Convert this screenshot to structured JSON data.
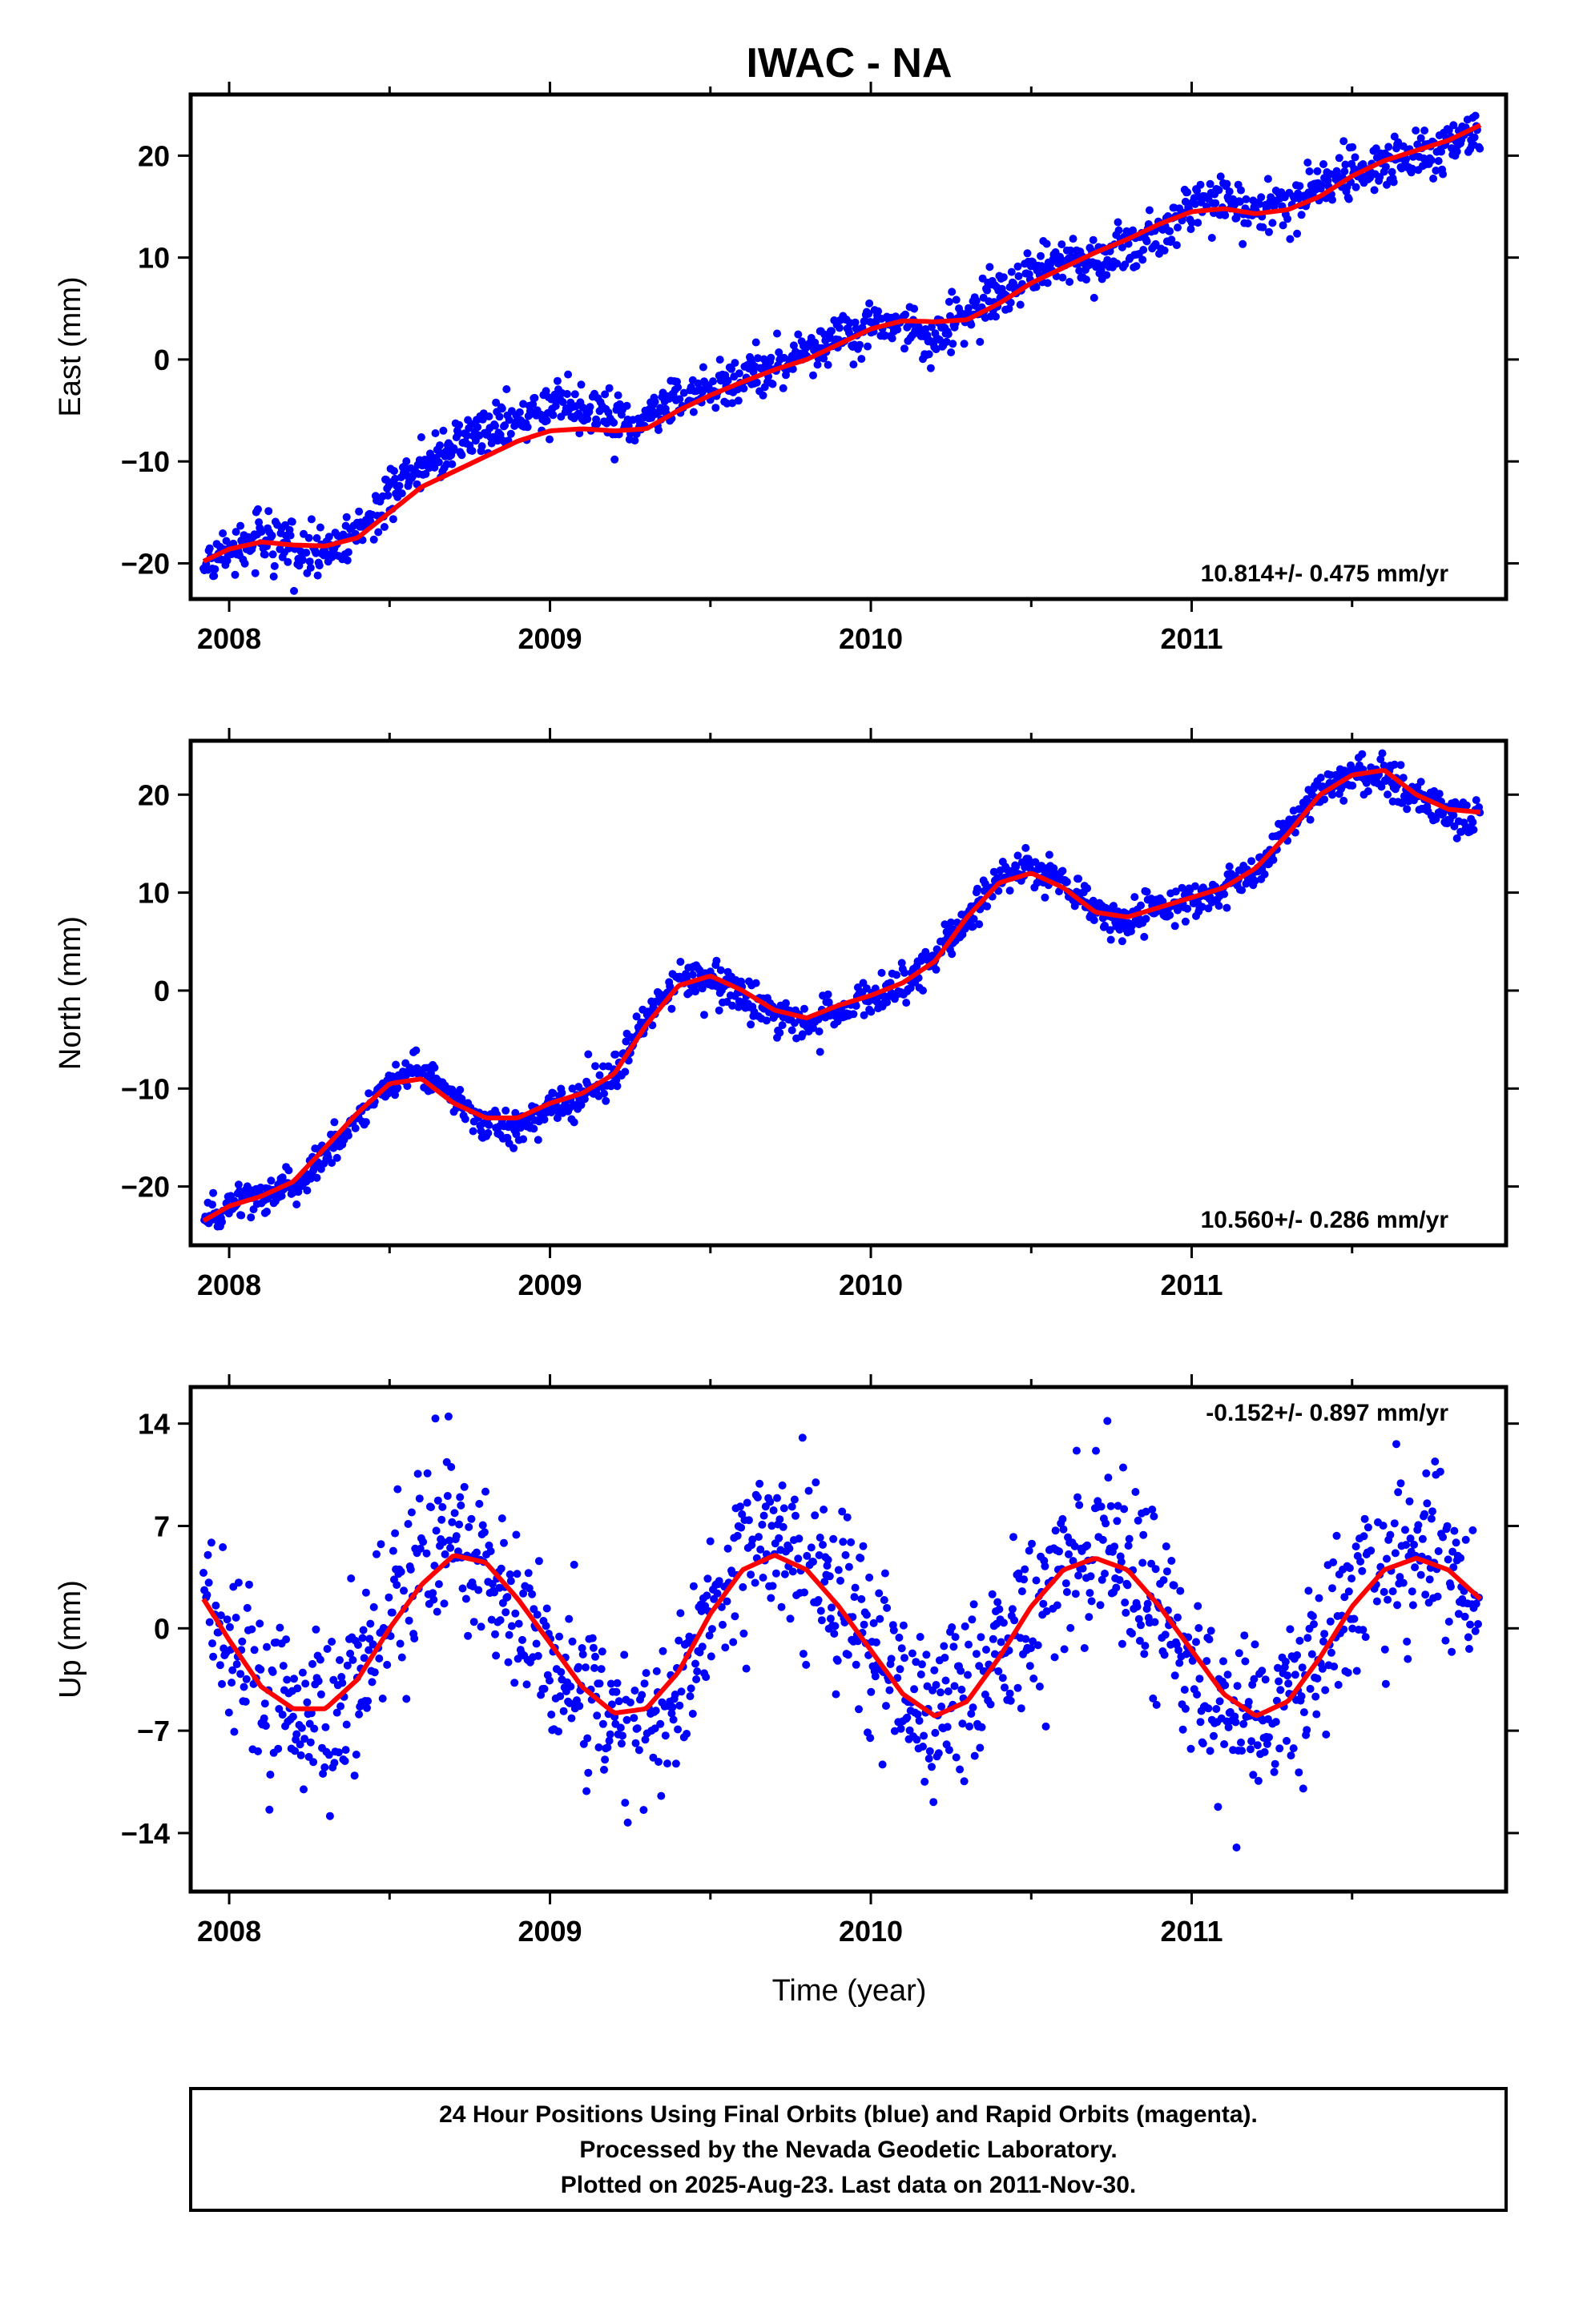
{
  "title": "IWAC - NA",
  "colors": {
    "final_orbits": "#0000ff",
    "model_fit": "#ff0000",
    "frame": "#000000"
  },
  "xlabel": "Time (year)",
  "footer": {
    "line1": "24 Hour Positions Using Final Orbits (blue) and Rapid Orbits (magenta).",
    "line2": "Processed by the Nevada Geodetic Laboratory.",
    "line3": "Plotted on 2025-Aug-23. Last data on 2011-Nov-30."
  },
  "chart_data": [
    {
      "type": "scatter",
      "component": "east",
      "ylabel": "East (mm)",
      "xlim": [
        2007.88,
        2011.98
      ],
      "ylim": [
        -23.5,
        26
      ],
      "xticks": [
        2008,
        2009,
        2010,
        2011
      ],
      "xtick_labels": [
        "2008",
        "2009",
        "2010",
        "2011"
      ],
      "yticks": [
        -20,
        -10,
        0,
        10,
        20
      ],
      "ytick_labels": [
        "−20",
        "−10",
        "0",
        "10",
        "20"
      ],
      "rate_label": "10.814+/- 0.475 mm/yr",
      "grid": false,
      "model": {
        "x": [
          2007.92,
          2008.0,
          2008.1,
          2008.2,
          2008.3,
          2008.4,
          2008.5,
          2008.6,
          2008.7,
          2008.8,
          2008.9,
          2009.0,
          2009.1,
          2009.2,
          2009.3,
          2009.4,
          2009.5,
          2009.6,
          2009.7,
          2009.8,
          2009.9,
          2010.0,
          2010.1,
          2010.2,
          2010.3,
          2010.4,
          2010.5,
          2010.6,
          2010.7,
          2010.8,
          2010.9,
          2011.0,
          2011.1,
          2011.2,
          2011.3,
          2011.4,
          2011.5,
          2011.6,
          2011.7,
          2011.8,
          2011.9
        ],
        "y": [
          -19.8,
          -18.6,
          -17.9,
          -18.2,
          -18.3,
          -17.5,
          -15.0,
          -12.5,
          -11.0,
          -9.5,
          -8.0,
          -7.0,
          -6.8,
          -7.0,
          -6.8,
          -5.0,
          -3.5,
          -2.2,
          -1.0,
          0.0,
          1.5,
          3.0,
          3.8,
          3.7,
          3.9,
          5.5,
          7.5,
          9.0,
          10.5,
          11.8,
          13.3,
          14.5,
          14.8,
          14.3,
          14.7,
          16.0,
          18.0,
          19.5,
          20.5,
          21.5,
          23.0
        ]
      },
      "observations": {
        "x": [
          2007.92,
          2008.0,
          2008.1,
          2008.2,
          2008.3,
          2008.4,
          2008.5,
          2008.6,
          2008.7,
          2008.8,
          2008.9,
          2009.0,
          2009.1,
          2009.2,
          2009.3,
          2009.4,
          2009.5,
          2009.6,
          2009.7,
          2009.8,
          2009.9,
          2010.0,
          2010.1,
          2010.2,
          2010.3,
          2010.4,
          2010.5,
          2010.6,
          2010.7,
          2010.8,
          2010.9,
          2011.0,
          2011.1,
          2011.2,
          2011.3,
          2011.4,
          2011.5,
          2011.6,
          2011.7,
          2011.8,
          2011.9
        ],
        "y": [
          -20.5,
          -19.0,
          -17.2,
          -18.5,
          -19.0,
          -16.8,
          -13.5,
          -10.5,
          -8.5,
          -7.0,
          -6.2,
          -4.5,
          -4.0,
          -6.5,
          -5.5,
          -4.0,
          -3.0,
          -1.5,
          -0.8,
          0.5,
          2.2,
          3.2,
          3.5,
          2.0,
          4.5,
          6.5,
          8.5,
          9.5,
          9.8,
          11.0,
          12.5,
          15.0,
          16.0,
          14.5,
          15.5,
          17.0,
          18.5,
          19.0,
          20.0,
          21.0,
          22.5
        ],
        "noise": 1.2
      }
    },
    {
      "type": "scatter",
      "component": "north",
      "ylabel": "North (mm)",
      "xlim": [
        2007.88,
        2011.98
      ],
      "ylim": [
        -26,
        25.5
      ],
      "xticks": [
        2008,
        2009,
        2010,
        2011
      ],
      "xtick_labels": [
        "2008",
        "2009",
        "2010",
        "2011"
      ],
      "yticks": [
        -20,
        -10,
        0,
        10,
        20
      ],
      "ytick_labels": [
        "−20",
        "−10",
        "0",
        "10",
        "20"
      ],
      "rate_label": "10.560+/- 0.286 mm/yr",
      "grid": false,
      "model": {
        "x": [
          2007.92,
          2008.0,
          2008.1,
          2008.2,
          2008.3,
          2008.4,
          2008.5,
          2008.6,
          2008.7,
          2008.8,
          2008.9,
          2009.0,
          2009.1,
          2009.2,
          2009.3,
          2009.4,
          2009.5,
          2009.6,
          2009.7,
          2009.8,
          2009.9,
          2010.0,
          2010.1,
          2010.2,
          2010.3,
          2010.4,
          2010.5,
          2010.6,
          2010.7,
          2010.8,
          2010.9,
          2011.0,
          2011.1,
          2011.2,
          2011.3,
          2011.4,
          2011.5,
          2011.6,
          2011.7,
          2011.8,
          2011.9
        ],
        "y": [
          -23.5,
          -22.0,
          -21.0,
          -19.5,
          -16.0,
          -12.5,
          -9.5,
          -9.0,
          -11.5,
          -13.0,
          -13.0,
          -11.5,
          -10.5,
          -8.5,
          -3.5,
          0.5,
          1.5,
          0.0,
          -2.0,
          -2.8,
          -1.5,
          -0.5,
          0.8,
          3.0,
          7.5,
          11.0,
          12.0,
          10.5,
          8.0,
          7.5,
          8.5,
          9.5,
          10.5,
          12.5,
          16.0,
          20.0,
          22.0,
          22.5,
          20.0,
          18.5,
          18.2
        ]
      },
      "observations": {
        "x": [
          2007.92,
          2008.0,
          2008.1,
          2008.2,
          2008.3,
          2008.4,
          2008.5,
          2008.6,
          2008.7,
          2008.8,
          2008.9,
          2009.0,
          2009.1,
          2009.2,
          2009.3,
          2009.4,
          2009.5,
          2009.6,
          2009.7,
          2009.8,
          2009.9,
          2010.0,
          2010.1,
          2010.2,
          2010.3,
          2010.4,
          2010.5,
          2010.6,
          2010.7,
          2010.8,
          2010.9,
          2011.0,
          2011.1,
          2011.2,
          2011.3,
          2011.4,
          2011.5,
          2011.6,
          2011.7,
          2011.8,
          2011.9
        ],
        "y": [
          -24.0,
          -22.0,
          -21.0,
          -19.8,
          -16.5,
          -13.0,
          -9.5,
          -8.0,
          -10.8,
          -13.5,
          -13.8,
          -12.0,
          -11.0,
          -9.0,
          -3.0,
          1.5,
          1.0,
          -0.5,
          -2.5,
          -3.5,
          -1.8,
          -0.8,
          0.5,
          3.5,
          7.0,
          11.5,
          12.5,
          11.0,
          8.0,
          7.0,
          8.5,
          9.0,
          10.5,
          12.0,
          16.5,
          20.5,
          22.0,
          22.0,
          19.5,
          18.0,
          17.5
        ],
        "noise": 0.9
      }
    },
    {
      "type": "scatter",
      "component": "up",
      "ylabel": "Up (mm)",
      "xlim": [
        2007.88,
        2011.98
      ],
      "ylim": [
        -18,
        16.5
      ],
      "xticks": [
        2008,
        2009,
        2010,
        2011
      ],
      "xtick_labels": [
        "2008",
        "2009",
        "2010",
        "2011"
      ],
      "yticks": [
        -14,
        -7,
        0,
        7,
        14
      ],
      "ytick_labels": [
        "−14",
        "−7",
        "0",
        "7",
        "14"
      ],
      "rate_label": "-0.152+/- 0.897 mm/yr",
      "grid": false,
      "model": {
        "x": [
          2007.92,
          2008.0,
          2008.1,
          2008.2,
          2008.3,
          2008.4,
          2008.5,
          2008.6,
          2008.7,
          2008.8,
          2008.9,
          2009.0,
          2009.1,
          2009.2,
          2009.3,
          2009.4,
          2009.5,
          2009.6,
          2009.7,
          2009.8,
          2009.9,
          2010.0,
          2010.1,
          2010.2,
          2010.3,
          2010.4,
          2010.5,
          2010.6,
          2010.7,
          2010.8,
          2010.9,
          2011.0,
          2011.1,
          2011.2,
          2011.3,
          2011.4,
          2011.5,
          2011.6,
          2011.7,
          2011.8,
          2011.9
        ],
        "y": [
          2.0,
          -0.8,
          -4.0,
          -5.5,
          -5.5,
          -3.5,
          0.0,
          3.0,
          5.0,
          4.5,
          2.0,
          -1.0,
          -4.0,
          -5.8,
          -5.5,
          -3.0,
          1.0,
          4.0,
          5.0,
          4.0,
          1.5,
          -1.5,
          -4.5,
          -6.0,
          -5.0,
          -2.0,
          1.5,
          4.0,
          4.8,
          4.0,
          1.5,
          -1.5,
          -4.5,
          -6.0,
          -5.0,
          -2.0,
          1.5,
          4.0,
          4.8,
          4.0,
          2.0
        ]
      },
      "observations": {
        "x": [
          2007.92,
          2008.0,
          2008.1,
          2008.2,
          2008.3,
          2008.4,
          2008.5,
          2008.6,
          2008.7,
          2008.8,
          2008.9,
          2009.0,
          2009.1,
          2009.2,
          2009.3,
          2009.4,
          2009.5,
          2009.6,
          2009.7,
          2009.8,
          2009.9,
          2010.0,
          2010.1,
          2010.2,
          2010.3,
          2010.4,
          2010.5,
          2010.6,
          2010.7,
          2010.8,
          2010.9,
          2011.0,
          2011.1,
          2011.2,
          2011.3,
          2011.4,
          2011.5,
          2011.6,
          2011.7,
          2011.8,
          2011.9
        ],
        "y": [
          2.5,
          -1.0,
          -3.5,
          -6.5,
          -6.0,
          -3.0,
          0.5,
          4.5,
          6.0,
          4.0,
          1.5,
          -2.0,
          -4.5,
          -6.5,
          -7.0,
          -3.5,
          1.5,
          5.0,
          6.0,
          5.0,
          2.0,
          -1.5,
          -5.0,
          -6.5,
          -4.5,
          -1.0,
          2.0,
          4.5,
          5.5,
          3.5,
          1.0,
          -2.5,
          -5.5,
          -6.0,
          -4.5,
          -2.0,
          2.0,
          5.0,
          5.5,
          4.5,
          2.5
        ],
        "noise": 3.0
      }
    }
  ]
}
